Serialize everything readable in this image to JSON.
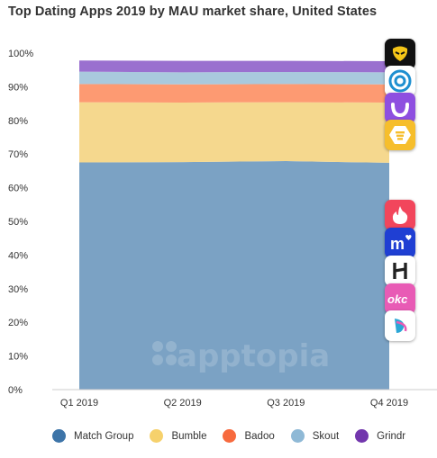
{
  "title": "Top Dating Apps 2019 by MAU market share, United States",
  "watermark": "apptopia",
  "colors": {
    "match_group": "#7ba2c4",
    "bumble": "#f5d88e",
    "badoo": "#fd9a72",
    "skout": "#a9c9dd",
    "grindr": "#9a70cf",
    "legend_match_group": "#3d74a8",
    "legend_bumble": "#f6d16c",
    "legend_badoo": "#f76a3e",
    "legend_skout": "#8fb9d6",
    "legend_grindr": "#7236ad"
  },
  "chart_data": {
    "type": "area",
    "stacked": true,
    "title": "Top Dating Apps 2019 by MAU market share, United States",
    "xlabel": "",
    "ylabel": "",
    "categories": [
      "Q1 2019",
      "Q2 2019",
      "Q3 2019",
      "Q4 2019"
    ],
    "yticks": [
      "0%",
      "10%",
      "20%",
      "30%",
      "40%",
      "50%",
      "60%",
      "70%",
      "80%",
      "90%",
      "100%"
    ],
    "ylim": [
      0,
      100
    ],
    "grid": false,
    "legend_position": "bottom",
    "series": [
      {
        "name": "Match Group",
        "values": [
          67.5,
          67.6,
          67.9,
          67.4
        ],
        "color_key": "match_group"
      },
      {
        "name": "Bumble",
        "values": [
          17.9,
          17.7,
          17.5,
          17.9
        ],
        "color_key": "bumble"
      },
      {
        "name": "Badoo",
        "values": [
          5.4,
          5.4,
          5.4,
          5.4
        ],
        "color_key": "badoo"
      },
      {
        "name": "Skout",
        "values": [
          3.7,
          3.6,
          3.6,
          3.6
        ],
        "color_key": "skout"
      },
      {
        "name": "Grindr",
        "values": [
          3.3,
          3.4,
          3.3,
          3.3
        ],
        "color_key": "grindr"
      }
    ]
  },
  "legend": [
    {
      "label": "Match Group",
      "color_key": "legend_match_group"
    },
    {
      "label": "Bumble",
      "color_key": "legend_bumble"
    },
    {
      "label": "Badoo",
      "color_key": "legend_badoo"
    },
    {
      "label": "Skout",
      "color_key": "legend_skout"
    },
    {
      "label": "Grindr",
      "color_key": "legend_grindr"
    }
  ],
  "app_icons": [
    {
      "icon": "grindr-icon",
      "bg": "#111111",
      "fg": "#f5c518"
    },
    {
      "icon": "skout-icon",
      "bg": "#ffffff",
      "fg": "#1e8fd0"
    },
    {
      "icon": "badoo-icon",
      "bg": "#8e4fe0",
      "fg": "#ffffff"
    },
    {
      "icon": "bumble-icon",
      "bg": "#f6be2c",
      "fg": "#ffffff"
    },
    {
      "icon": "tinder-icon",
      "bg": "#f2465c",
      "fg": "#ffffff"
    },
    {
      "icon": "match-icon",
      "bg": "#1f3fd3",
      "fg": "#ffffff"
    },
    {
      "icon": "hinge-icon",
      "bg": "#ffffff",
      "fg": "#222222"
    },
    {
      "icon": "okcupid-icon",
      "bg": "#e85bb5",
      "fg": "#ffffff"
    },
    {
      "icon": "pof-icon",
      "bg": "#ffffff",
      "fg": "#2ba6d6"
    }
  ]
}
